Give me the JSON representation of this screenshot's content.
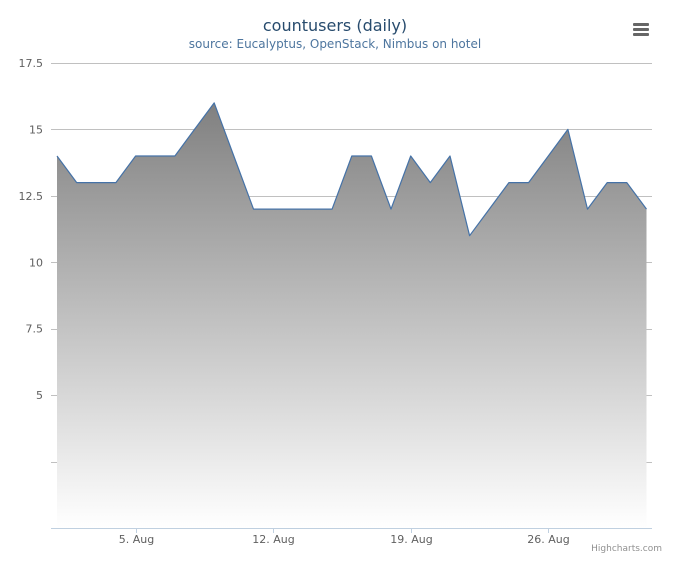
{
  "title": "countusers (daily)",
  "subtitle": "source: Eucalyptus, OpenStack, Nimbus on hotel",
  "credits": "Highcharts.com",
  "menu_icon": "hamburger-menu-icon",
  "colors": {
    "title": "#274b6d",
    "subtitle": "#4d759e",
    "line": "#4572a7",
    "area_top": "#808080",
    "area_bottom": "#ffffff",
    "grid": "#c0c0c0",
    "axis": "#c0d0e0"
  },
  "chart_data": {
    "type": "area",
    "title": "countusers (daily)",
    "subtitle": "source: Eucalyptus, OpenStack, Nimbus on hotel",
    "x_start": "2013-08-01",
    "x_interval_days": 1,
    "x_ticks": [
      "5. Aug",
      "12. Aug",
      "19. Aug",
      "26. Aug"
    ],
    "y_ticks": [
      "5",
      "7.5",
      "10",
      "12.5",
      "15",
      "17.5"
    ],
    "ylim": [
      0,
      17.5
    ],
    "grid": true,
    "legend": "none",
    "series": [
      {
        "values": [
          14,
          13,
          13,
          13,
          14,
          14,
          14,
          15,
          16,
          14,
          12,
          12,
          12,
          12,
          12,
          14,
          14,
          12,
          14,
          13,
          14,
          11,
          12,
          13,
          13,
          14,
          15,
          12,
          13,
          13,
          12
        ]
      }
    ]
  }
}
